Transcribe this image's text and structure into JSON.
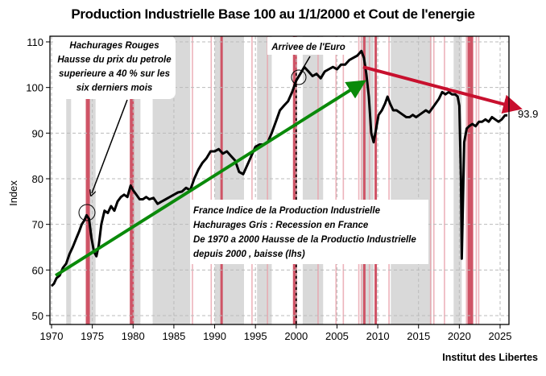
{
  "chart_data": {
    "type": "line",
    "title": "Production Industrielle Base 100 au 1/1/2000 et Cout de l'energie",
    "xlabel": "",
    "ylabel": "Index",
    "xlim": [
      1969.7,
      2026.9
    ],
    "ylim": [
      48.5,
      111
    ],
    "grid": true,
    "x_ticks": [
      1970,
      1975,
      1980,
      1985,
      1990,
      1995,
      2000,
      2005,
      2010,
      2015,
      2020,
      2025
    ],
    "y_ticks": [
      50,
      60,
      70,
      80,
      90,
      100,
      110
    ],
    "last_value_label": "93.9",
    "source": "Institut des Libertes",
    "series": [
      {
        "name": "France Indice de la Production Industrielle",
        "color": "#000000",
        "points": [
          [
            1970.0,
            56.5
          ],
          [
            1970.3,
            57.0
          ],
          [
            1970.6,
            58.2
          ],
          [
            1971.0,
            58.8
          ],
          [
            1971.4,
            60.5
          ],
          [
            1971.8,
            61.4
          ],
          [
            1972.2,
            63.5
          ],
          [
            1972.6,
            65.0
          ],
          [
            1973.0,
            66.8
          ],
          [
            1973.4,
            68.5
          ],
          [
            1973.7,
            70.0
          ],
          [
            1974.0,
            70.8
          ],
          [
            1974.3,
            72.0
          ],
          [
            1974.6,
            71.2
          ],
          [
            1974.9,
            67.0
          ],
          [
            1975.2,
            64.0
          ],
          [
            1975.5,
            63.0
          ],
          [
            1975.8,
            65.5
          ],
          [
            1976.1,
            70.0
          ],
          [
            1976.5,
            73.0
          ],
          [
            1976.9,
            72.5
          ],
          [
            1977.3,
            74.0
          ],
          [
            1977.7,
            73.0
          ],
          [
            1978.1,
            75.0
          ],
          [
            1978.5,
            76.0
          ],
          [
            1978.9,
            76.5
          ],
          [
            1979.3,
            76.0
          ],
          [
            1979.7,
            78.5
          ],
          [
            1980.0,
            77.5
          ],
          [
            1980.4,
            76.5
          ],
          [
            1980.8,
            75.5
          ],
          [
            1981.2,
            75.5
          ],
          [
            1981.6,
            76.0
          ],
          [
            1982.0,
            75.5
          ],
          [
            1982.5,
            75.8
          ],
          [
            1983.0,
            74.5
          ],
          [
            1983.5,
            75.0
          ],
          [
            1984.0,
            75.5
          ],
          [
            1984.5,
            76.0
          ],
          [
            1985.0,
            76.5
          ],
          [
            1985.5,
            77.0
          ],
          [
            1986.0,
            77.2
          ],
          [
            1986.5,
            78.0
          ],
          [
            1987.0,
            77.5
          ],
          [
            1987.5,
            80.0
          ],
          [
            1988.0,
            82.0
          ],
          [
            1988.5,
            83.5
          ],
          [
            1989.0,
            84.5
          ],
          [
            1989.5,
            86.0
          ],
          [
            1990.0,
            86.0
          ],
          [
            1990.5,
            86.5
          ],
          [
            1991.0,
            85.5
          ],
          [
            1991.5,
            86.0
          ],
          [
            1992.0,
            85.0
          ],
          [
            1992.5,
            84.0
          ],
          [
            1993.0,
            81.5
          ],
          [
            1993.5,
            81.0
          ],
          [
            1994.0,
            83.0
          ],
          [
            1994.5,
            85.0
          ],
          [
            1995.0,
            87.0
          ],
          [
            1995.5,
            87.5
          ],
          [
            1996.0,
            87.5
          ],
          [
            1996.5,
            88.0
          ],
          [
            1997.0,
            90.0
          ],
          [
            1997.5,
            92.5
          ],
          [
            1998.0,
            95.0
          ],
          [
            1998.5,
            96.0
          ],
          [
            1999.0,
            97.0
          ],
          [
            1999.5,
            99.0
          ],
          [
            2000.0,
            101.5
          ],
          [
            2000.5,
            103.0
          ],
          [
            2001.0,
            104.5
          ],
          [
            2001.5,
            103.5
          ],
          [
            2002.0,
            102.5
          ],
          [
            2002.5,
            103.0
          ],
          [
            2003.0,
            102.0
          ],
          [
            2003.5,
            103.5
          ],
          [
            2004.0,
            104.0
          ],
          [
            2004.5,
            104.5
          ],
          [
            2005.0,
            104.0
          ],
          [
            2005.5,
            105.0
          ],
          [
            2006.0,
            105.0
          ],
          [
            2006.5,
            106.0
          ],
          [
            2007.0,
            106.5
          ],
          [
            2007.5,
            107.0
          ],
          [
            2008.0,
            108.0
          ],
          [
            2008.3,
            106.5
          ],
          [
            2008.6,
            103.0
          ],
          [
            2008.9,
            98.0
          ],
          [
            2009.2,
            90.0
          ],
          [
            2009.5,
            88.0
          ],
          [
            2009.8,
            91.0
          ],
          [
            2010.1,
            94.0
          ],
          [
            2010.5,
            95.0
          ],
          [
            2010.9,
            96.5
          ],
          [
            2011.2,
            98.0
          ],
          [
            2011.5,
            96.5
          ],
          [
            2011.9,
            95.0
          ],
          [
            2012.3,
            95.0
          ],
          [
            2012.7,
            94.5
          ],
          [
            2013.1,
            94.0
          ],
          [
            2013.5,
            93.5
          ],
          [
            2013.9,
            93.5
          ],
          [
            2014.3,
            94.0
          ],
          [
            2014.7,
            93.5
          ],
          [
            2015.1,
            94.0
          ],
          [
            2015.5,
            94.5
          ],
          [
            2015.9,
            95.0
          ],
          [
            2016.3,
            94.5
          ],
          [
            2016.7,
            95.5
          ],
          [
            2017.1,
            96.5
          ],
          [
            2017.5,
            97.5
          ],
          [
            2017.9,
            99.0
          ],
          [
            2018.3,
            98.5
          ],
          [
            2018.7,
            99.0
          ],
          [
            2019.1,
            98.5
          ],
          [
            2019.5,
            98.5
          ],
          [
            2019.8,
            98.0
          ],
          [
            2020.0,
            96.0
          ],
          [
            2020.2,
            80.0
          ],
          [
            2020.3,
            62.5
          ],
          [
            2020.45,
            75.0
          ],
          [
            2020.6,
            88.0
          ],
          [
            2020.9,
            91.0
          ],
          [
            2021.2,
            91.5
          ],
          [
            2021.6,
            92.0
          ],
          [
            2022.0,
            91.5
          ],
          [
            2022.4,
            92.5
          ],
          [
            2022.8,
            92.5
          ],
          [
            2023.2,
            93.0
          ],
          [
            2023.6,
            92.5
          ],
          [
            2024.0,
            93.5
          ],
          [
            2024.4,
            93.0
          ],
          [
            2024.8,
            92.5
          ],
          [
            2025.2,
            93.0
          ],
          [
            2025.6,
            93.9
          ],
          [
            2025.9,
            93.9
          ]
        ]
      }
    ],
    "recession_bands_grey": [
      [
        1971.8,
        1972.4
      ],
      [
        1974.2,
        1975.4
      ],
      [
        1979.6,
        1980.9
      ],
      [
        1982.4,
        1987.0
      ],
      [
        1990.0,
        1993.6
      ],
      [
        1995.2,
        1997.0
      ],
      [
        2000.8,
        2003.3
      ],
      [
        2008.0,
        2009.5
      ],
      [
        2011.6,
        2016.6
      ],
      [
        2019.3,
        2020.3
      ]
    ],
    "oil_shock_bands_red": [
      [
        1974.2,
        1974.7
      ],
      [
        1979.6,
        1980.1
      ],
      [
        1990.7,
        1991.0
      ],
      [
        1999.6,
        2000.1
      ],
      [
        2008.2,
        2008.5
      ],
      [
        2009.6,
        2009.9
      ],
      [
        2021.0,
        2021.7
      ]
    ],
    "oil_shock_lines_red": [
      1987.2,
      1989.5,
      1994.5,
      1996.4,
      2002.6,
      2004.8,
      2005.7,
      2007.6,
      2007.9,
      2008.9,
      2011.3,
      2016.4,
      2016.8,
      2018.1,
      2020.8,
      2022.0,
      2022.3,
      2026.2
    ],
    "euro_marker_year": 2000.0,
    "trend_arrows": [
      {
        "name": "green-trend-arrow",
        "color": "#0a8a0a",
        "from": [
          1970.5,
          58.8
        ],
        "to": [
          2007.6,
          100.5
        ]
      },
      {
        "name": "red-trend-arrow",
        "color": "#c8102e",
        "from": [
          2008.2,
          104.5
        ],
        "to": [
          2026.6,
          95.8
        ]
      }
    ],
    "annotations": [
      {
        "name": "oil-annotation",
        "lines": [
          "Hachurages Rouges",
          "Hausse du prix du petrole",
          "superieure a 40 % sur les",
          "six derniers mois"
        ]
      },
      {
        "name": "euro-annotation",
        "lines": [
          "Arrivee de l'Euro"
        ]
      },
      {
        "name": "legend-annotation",
        "lines": [
          "France Indice de la Production Industrielle",
          "Hachurages Gris : Recession en France",
          "De 1970 a 2000 Hausse de la Productio Industrielle",
          "depuis 2000 , baisse (lhs)"
        ]
      }
    ]
  }
}
